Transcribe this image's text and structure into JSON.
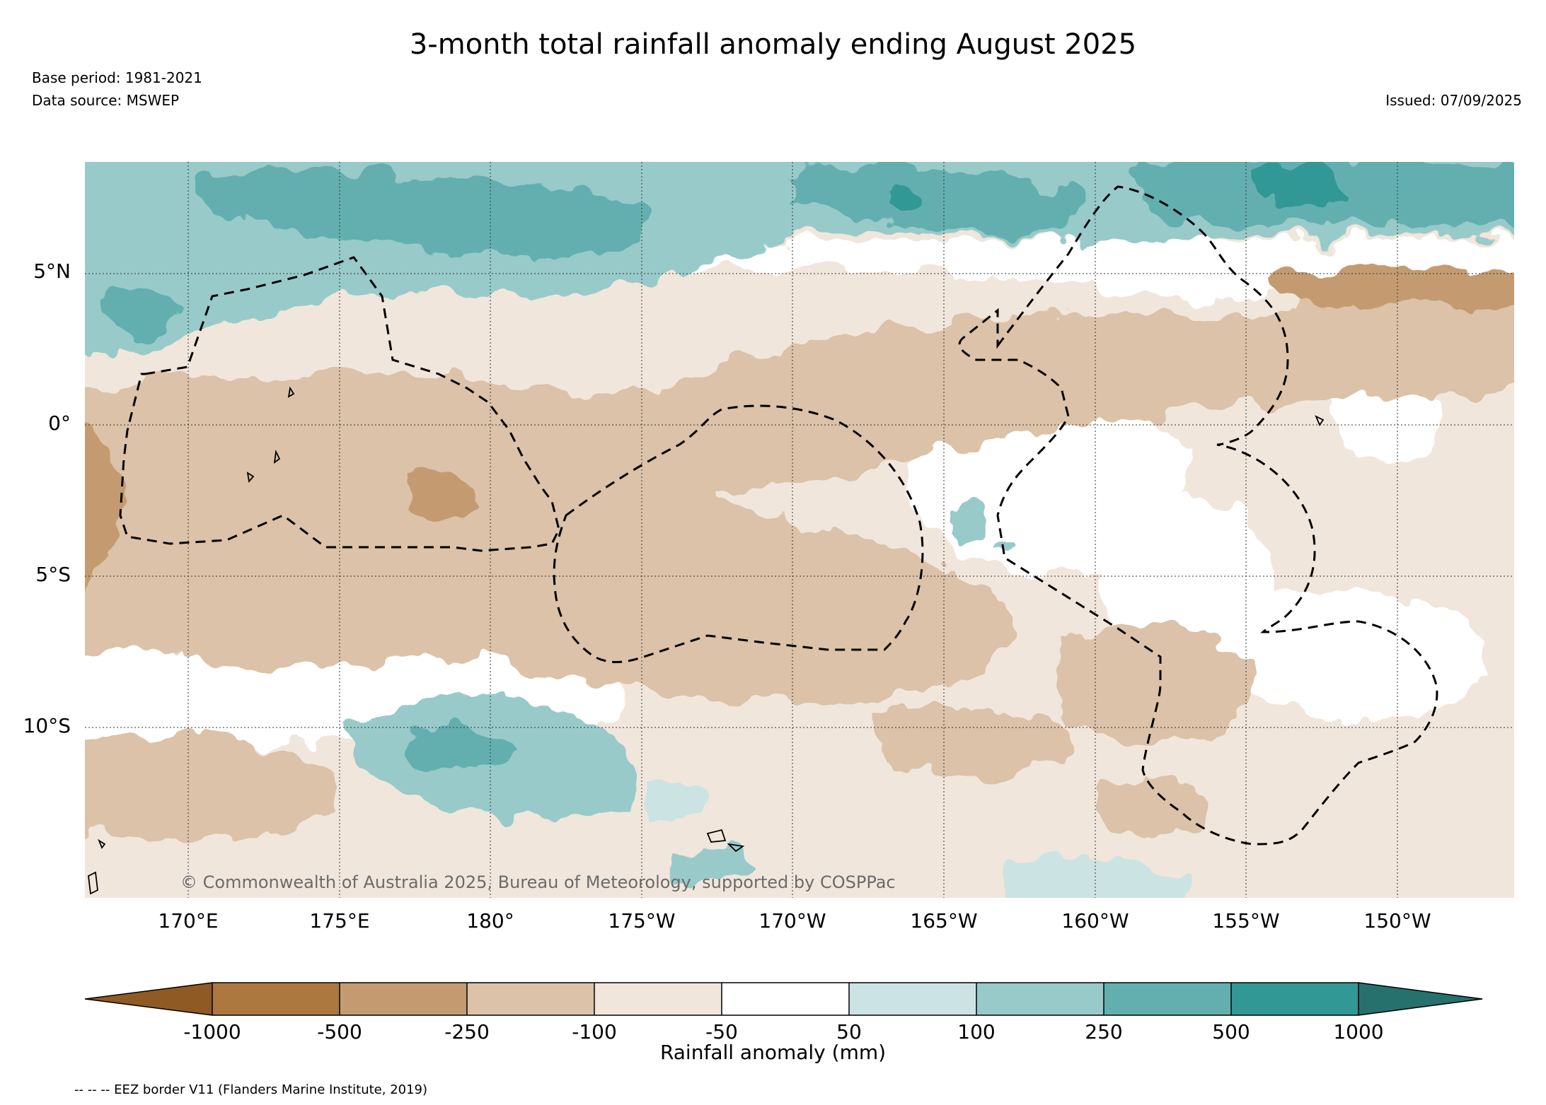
{
  "header": {
    "title": "3-month total rainfall anomaly ending August 2025",
    "base_period": "Base period: 1981-2021",
    "data_source": "Data source: MSWEP",
    "issued": "Issued: 07/09/2025"
  },
  "map": {
    "latitude_labels": [
      "5°N",
      "0°",
      "5°S",
      "10°S"
    ],
    "longitude_labels": [
      "170°E",
      "175°E",
      "180°",
      "175°W",
      "170°W",
      "165°W",
      "160°W",
      "155°W",
      "150°W"
    ],
    "copyright": "© Commonwealth of Australia 2025, Bureau of Meteorology, supported by COSPPac"
  },
  "colorbar": {
    "title": "Rainfall anomaly (mm)",
    "ticks": [
      "-1000",
      "-500",
      "-250",
      "-100",
      "-50",
      "50",
      "100",
      "250",
      "500",
      "1000"
    ],
    "colors": [
      "#8f5a24",
      "#ac7840",
      "#c49b70",
      "#dbc2a8",
      "#f1e6dc",
      "#ffffff",
      "#cce3e3",
      "#98caca",
      "#63afaf",
      "#319895",
      "#26716e"
    ]
  },
  "legend_note": "-- -- -- EEZ border V11 (Flanders Marine Institute, 2019)"
}
